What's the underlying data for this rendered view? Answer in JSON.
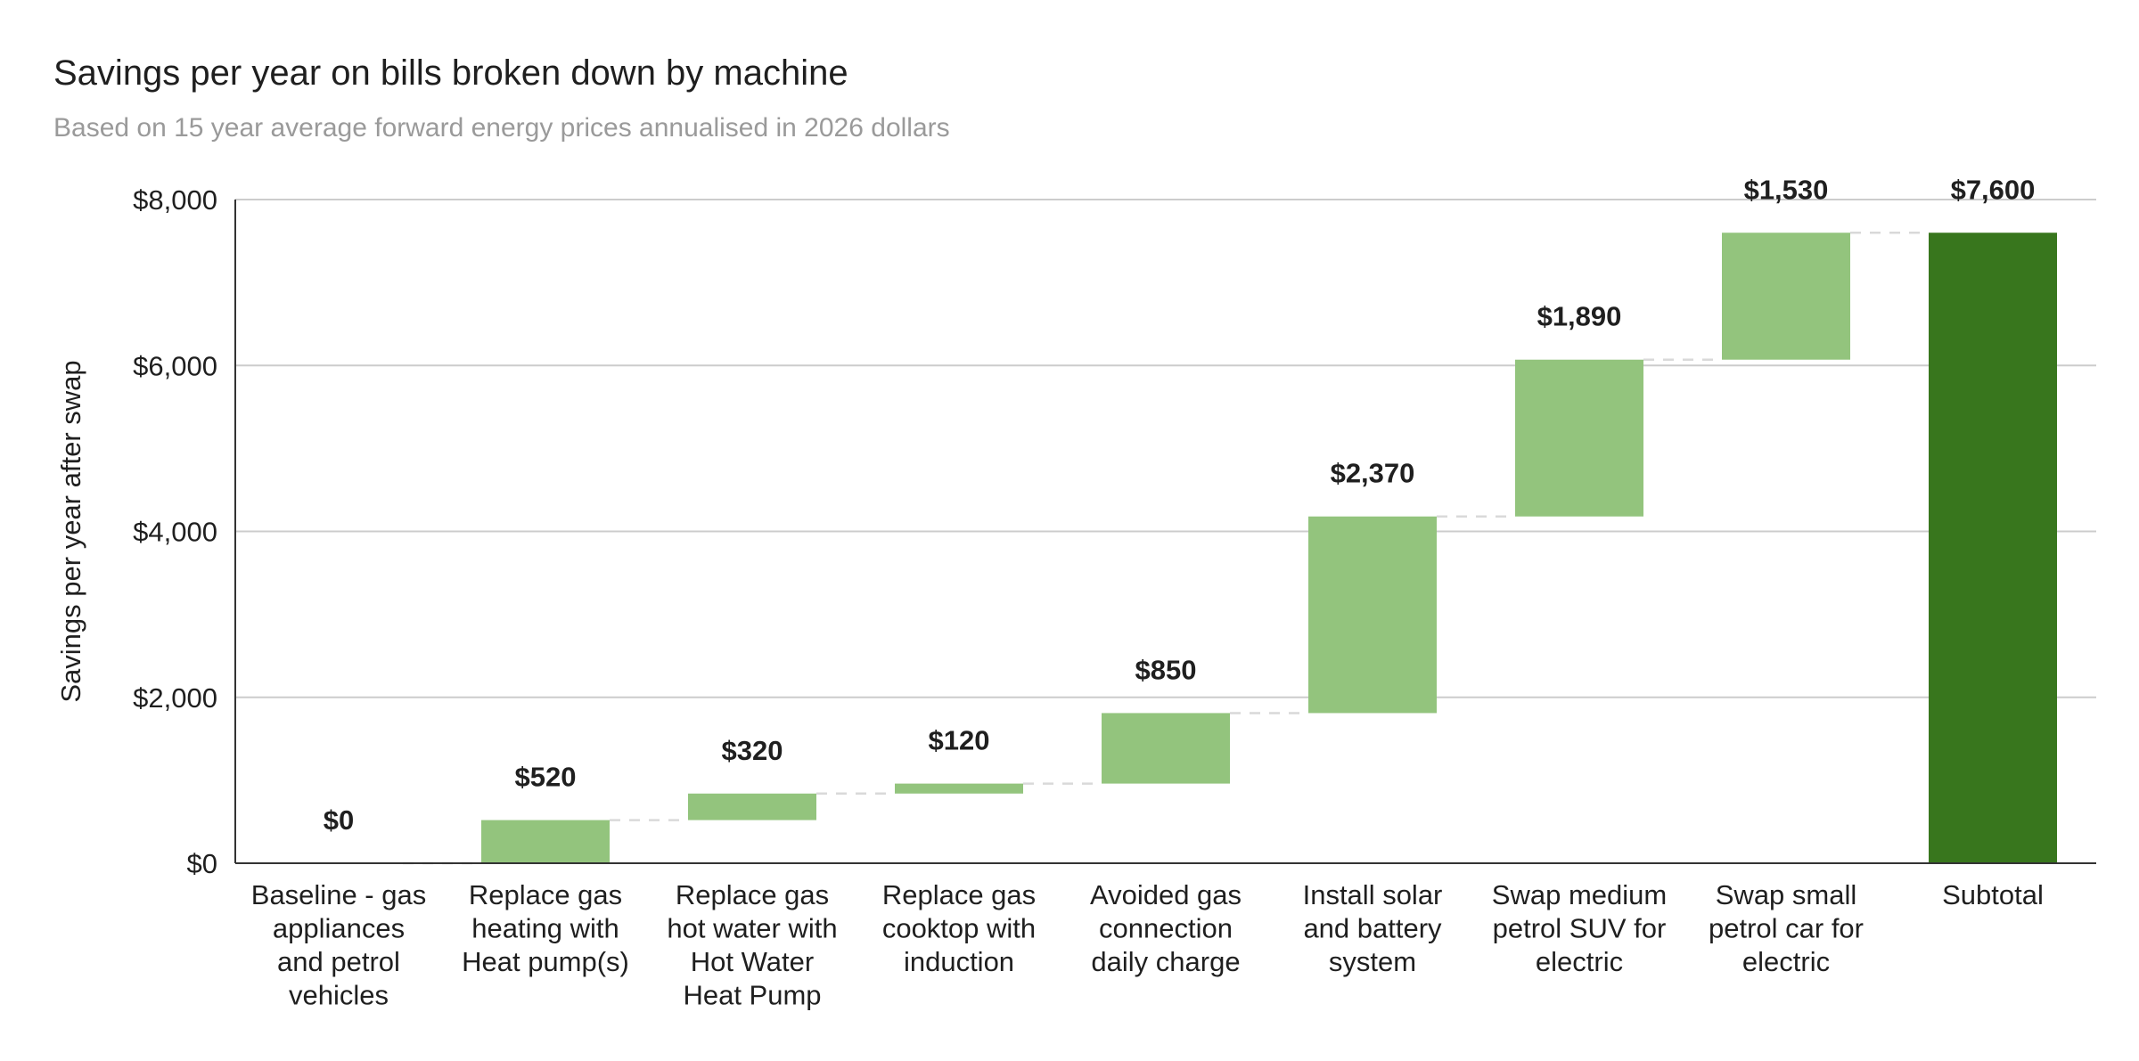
{
  "chart_data": {
    "type": "waterfall",
    "title": "Savings per year on bills broken down by machine",
    "subtitle": "Based on 15 year average forward energy prices annualised in 2026 dollars",
    "ylabel": "Savings per year after swap",
    "xlabel": "",
    "ylim": [
      0,
      8000
    ],
    "y_ticks": [
      0,
      2000,
      4000,
      6000,
      8000
    ],
    "y_tick_labels": [
      "$0",
      "$2,000",
      "$4,000",
      "$6,000",
      "$8,000"
    ],
    "grid": true,
    "legend": "none",
    "categories": [
      [
        "Baseline - gas",
        "appliances",
        "and petrol",
        "vehicles"
      ],
      [
        "Replace gas",
        "heating with",
        "Heat pump(s)"
      ],
      [
        "Replace gas",
        "hot water with",
        "Hot Water",
        "Heat Pump"
      ],
      [
        "Replace gas",
        "cooktop with",
        "induction"
      ],
      [
        "Avoided gas",
        "connection",
        "daily charge"
      ],
      [
        "Install solar",
        "and battery",
        "system"
      ],
      [
        "Swap medium",
        "petrol SUV for",
        "electric"
      ],
      [
        "Swap small",
        "petrol car for",
        "electric"
      ],
      [
        "Subtotal"
      ]
    ],
    "values": [
      0,
      520,
      320,
      120,
      850,
      2370,
      1890,
      1530,
      7600
    ],
    "value_labels": [
      "$0",
      "$520",
      "$320",
      "$120",
      "$850",
      "$2,370",
      "$1,890",
      "$1,530",
      "$7,600"
    ],
    "is_total": [
      false,
      false,
      false,
      false,
      false,
      false,
      false,
      false,
      true
    ],
    "colors": {
      "increase": "#93c47d",
      "total": "#38761d",
      "connector": "#d9d9d9",
      "grid": "#cccccc",
      "axis": "#333333",
      "text": "#1f1f1f",
      "subtitle": "#9a9a9a"
    }
  }
}
